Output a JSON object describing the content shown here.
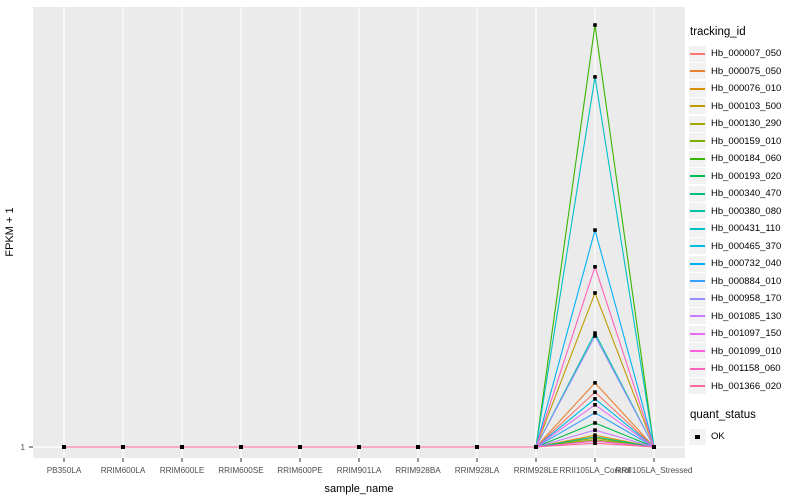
{
  "figure": {
    "background": "#FFFFFF",
    "panel_background": "#EBEBEB",
    "grid_color": "#FFFFFF",
    "tick_color": "#333333",
    "tick_label_color": "#4D4D4D",
    "point_color": "#000000"
  },
  "axes": {
    "x_title": "sample_name",
    "y_title": "FPKM + 1",
    "y_tick_labels": [
      "1"
    ]
  },
  "legend": {
    "tracking_title": "tracking_id",
    "quant_title": "quant_status",
    "quant_items": [
      {
        "label": "OK",
        "marker": "black-square"
      }
    ],
    "key_background": "#F2F2F2"
  },
  "chart_data": {
    "type": "line",
    "title": "",
    "xlabel": "sample_name",
    "ylabel": "FPKM + 1",
    "legend_position": "right",
    "grid": "white-on-gray, vertical major gridlines per category, horizontal gridline at y tick 1",
    "x_categories": [
      "PB350LA",
      "RRIM600LA",
      "RRIM600LE",
      "RRIM600SE",
      "RRIM600PE",
      "RRIM901LA",
      "RRIM928BA",
      "RRIM928LA",
      "RRIM928LE",
      "RRII105LA_Control",
      "RRII105LA_Stressed"
    ],
    "y_axis_note": "Only one labeled tick ('1' = FPKM+1 baseline). All series sit at 1 for every sample except a peak at RRII105LA_Control; peak_frac is the peak height as a fraction of the tallest peak.",
    "baseline_value": 1,
    "peak_sample": "RRII105LA_Control",
    "point_marker": "filled black square (quant_status = OK) at every sample position",
    "series": [
      {
        "name": "Hb_000007_050",
        "color": "#F8766D",
        "peak_frac": 0.13
      },
      {
        "name": "Hb_000075_050",
        "color": "#EA8331",
        "peak_frac": 0.152
      },
      {
        "name": "Hb_000076_010",
        "color": "#D89000",
        "peak_frac": 0.028
      },
      {
        "name": "Hb_000103_500",
        "color": "#C09B00",
        "peak_frac": 0.365
      },
      {
        "name": "Hb_000130_290",
        "color": "#A3A500",
        "peak_frac": 0.021
      },
      {
        "name": "Hb_000159_010",
        "color": "#7CAE00",
        "peak_frac": 0.017
      },
      {
        "name": "Hb_000184_060",
        "color": "#39B600",
        "peak_frac": 1.0
      },
      {
        "name": "Hb_000193_020",
        "color": "#00BB4E",
        "peak_frac": 0.057
      },
      {
        "name": "Hb_000340_470",
        "color": "#00BF7D",
        "peak_frac": 0.024
      },
      {
        "name": "Hb_000380_080",
        "color": "#00C1A3",
        "peak_frac": 0.27
      },
      {
        "name": "Hb_000431_110",
        "color": "#00BFC4",
        "peak_frac": 0.877
      },
      {
        "name": "Hb_000465_370",
        "color": "#00BAE0",
        "peak_frac": 0.114
      },
      {
        "name": "Hb_000732_040",
        "color": "#00B0F6",
        "peak_frac": 0.514
      },
      {
        "name": "Hb_000884_010",
        "color": "#35A2FF",
        "peak_frac": 0.081
      },
      {
        "name": "Hb_000958_170",
        "color": "#9590FF",
        "peak_frac": 0.263
      },
      {
        "name": "Hb_001085_130",
        "color": "#C77CFF",
        "peak_frac": 0.04
      },
      {
        "name": "Hb_001097_150",
        "color": "#E76BF3",
        "peak_frac": 0.1
      },
      {
        "name": "Hb_001099_010",
        "color": "#FA62DB",
        "peak_frac": 0.014
      },
      {
        "name": "Hb_001158_060",
        "color": "#FF62BC",
        "peak_frac": 0.427
      },
      {
        "name": "Hb_001366_020",
        "color": "#FF6A98",
        "peak_frac": 0.009
      }
    ]
  }
}
